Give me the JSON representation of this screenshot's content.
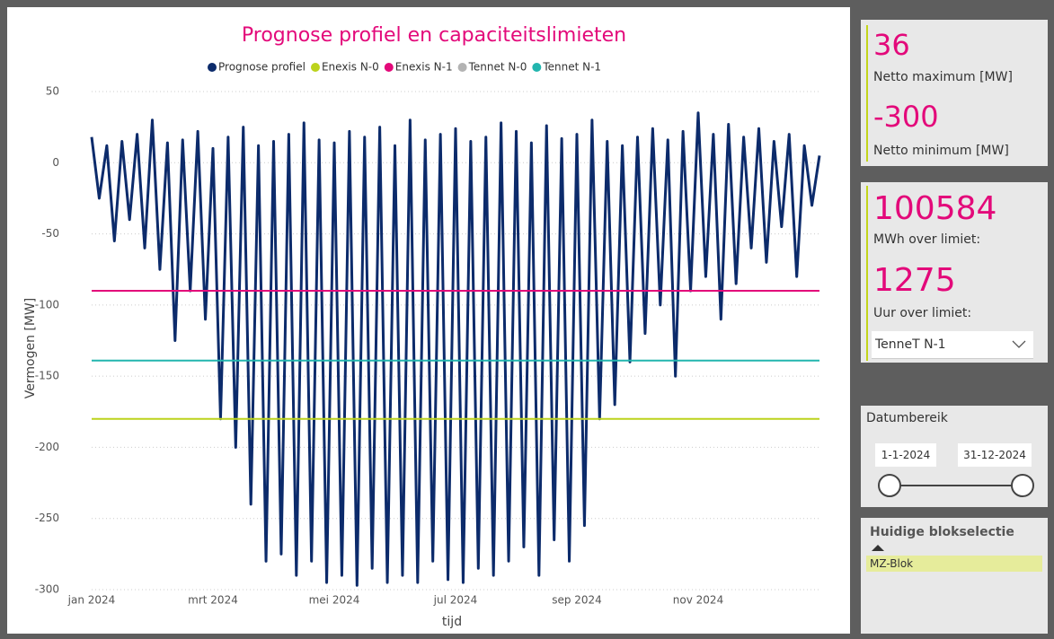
{
  "chart_data": {
    "type": "line",
    "title": "Prognose profiel en capaciteitslimieten",
    "x_label": "tijd",
    "y_label": "Vermogen [MW]",
    "xlim": [
      0,
      12
    ],
    "xticks": [
      {
        "value": 0,
        "label": "jan 2024"
      },
      {
        "value": 2,
        "label": "mrt 2024"
      },
      {
        "value": 4,
        "label": "mei 2024"
      },
      {
        "value": 6,
        "label": "jul 2024"
      },
      {
        "value": 8,
        "label": "sep 2024"
      },
      {
        "value": 10,
        "label": "nov 2024"
      }
    ],
    "ylim": [
      -300,
      50
    ],
    "yticks": [
      -300,
      -250,
      -200,
      -150,
      -100,
      -50,
      0,
      50
    ],
    "grid": true,
    "x": [
      0,
      0.125,
      0.25,
      0.375,
      0.5,
      0.625,
      0.75,
      0.875,
      1,
      1.125,
      1.25,
      1.375,
      1.5,
      1.625,
      1.75,
      1.875,
      2,
      2.125,
      2.25,
      2.375,
      2.5,
      2.625,
      2.75,
      2.875,
      3,
      3.125,
      3.25,
      3.375,
      3.5,
      3.625,
      3.75,
      3.875,
      4,
      4.125,
      4.25,
      4.375,
      4.5,
      4.625,
      4.75,
      4.875,
      5,
      5.125,
      5.25,
      5.375,
      5.5,
      5.625,
      5.75,
      5.875,
      6,
      6.125,
      6.25,
      6.375,
      6.5,
      6.625,
      6.75,
      6.875,
      7,
      7.125,
      7.25,
      7.375,
      7.5,
      7.625,
      7.75,
      7.875,
      8,
      8.125,
      8.25,
      8.375,
      8.5,
      8.625,
      8.75,
      8.875,
      9,
      9.125,
      9.25,
      9.375,
      9.5,
      9.625,
      9.75,
      9.875,
      10,
      10.125,
      10.25,
      10.375,
      10.5,
      10.625,
      10.75,
      10.875,
      11,
      11.125,
      11.25,
      11.375,
      11.5,
      11.625,
      11.75,
      11.875,
      12
    ],
    "series": [
      {
        "name": "Prognose profiel",
        "color": "#0c2b6b",
        "values": [
          18,
          -25,
          12,
          -55,
          15,
          -40,
          20,
          -60,
          30,
          -75,
          14,
          -125,
          16,
          -90,
          22,
          -110,
          10,
          -180,
          18,
          -200,
          25,
          -240,
          12,
          -280,
          15,
          -275,
          20,
          -290,
          28,
          -280,
          16,
          -295,
          14,
          -290,
          22,
          -297,
          18,
          -285,
          25,
          -295,
          12,
          -290,
          30,
          -295,
          16,
          -280,
          20,
          -293,
          24,
          -295,
          15,
          -285,
          18,
          -290,
          28,
          -280,
          22,
          -270,
          14,
          -290,
          26,
          -265,
          17,
          -280,
          20,
          -255,
          30,
          -180,
          15,
          -170,
          12,
          -140,
          18,
          -120,
          24,
          -100,
          16,
          -150,
          22,
          -90,
          35,
          -80,
          20,
          -110,
          27,
          -85,
          18,
          -60,
          24,
          -70,
          15,
          -45,
          20,
          -80,
          12,
          -30,
          5
        ]
      },
      {
        "name": "Enexis N-0",
        "color": "#bcd31c",
        "value": -180
      },
      {
        "name": "Enexis N-1",
        "color": "#e3097a",
        "value": -90
      },
      {
        "name": "Tennet N-0",
        "color": "#b3b3b3",
        "value": null
      },
      {
        "name": "Tennet N-1",
        "color": "#22b5ae",
        "value": -139
      }
    ]
  },
  "kpis": [
    {
      "value": 36,
      "label": "Netto maximum [MW]"
    },
    {
      "value": -300,
      "label": "Netto minimum [MW]"
    },
    {
      "value": 100584,
      "label": "MWh over limiet:"
    },
    {
      "value": 1275,
      "label": "Uur over limiet:"
    }
  ],
  "dropdown": {
    "selected": "TenneT N-1"
  },
  "date_slicer": {
    "title": "Datumbereik",
    "start": "1-1-2024",
    "end": "31-12-2024"
  },
  "selection": {
    "title": "Huidige blokselectie",
    "item": "MZ-Blok"
  }
}
